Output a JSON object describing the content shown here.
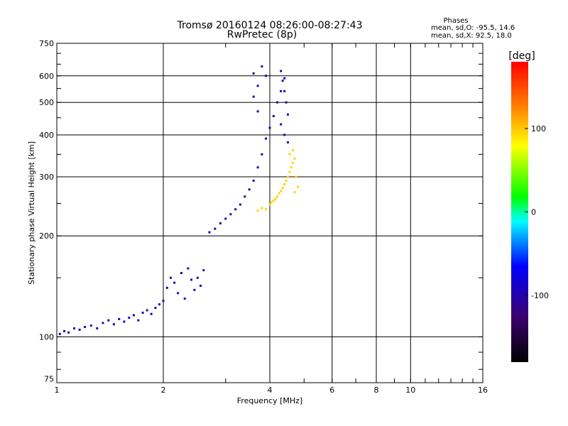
{
  "chart_data": {
    "type": "scatter",
    "title": "Tromsø 20160124 08:26:00-08:27:43",
    "subtitle": "RwPretec (8p)",
    "xlabel": "Frequency [MHz]",
    "ylabel": "Stationary phase Virtual Height [km]",
    "xscale": "log",
    "yscale": "log",
    "xlim": [
      1,
      16
    ],
    "ylim": [
      73,
      750
    ],
    "grid": true,
    "x_ticks": [
      1,
      2,
      4,
      6,
      8,
      10,
      16
    ],
    "x_tick_labels": [
      "1",
      "2",
      "4",
      "6",
      "8",
      "10",
      "16"
    ],
    "y_ticks": [
      75,
      100,
      200,
      300,
      400,
      500,
      600,
      750
    ],
    "y_tick_labels": [
      "75",
      "100",
      "200",
      "300",
      "400",
      "500",
      "600",
      "750"
    ],
    "phase_stats": {
      "title": "Phases",
      "o_line": "mean, sd,O: -95.5, 14.6",
      "x_line": "mean, sd,X:  92.5, 18.0"
    },
    "colorbar": {
      "label": "[deg]",
      "range": [
        -180,
        180
      ],
      "ticks": [
        100,
        0,
        -100
      ],
      "tick_labels": [
        "100",
        "0",
        "-100"
      ]
    },
    "series": [
      {
        "mode": "O",
        "phase_mean": -95.5,
        "phase_sd": 14.6,
        "color_phase": -100,
        "x": [
          1.02,
          1.05,
          1.08,
          1.12,
          1.16,
          1.2,
          1.25,
          1.3,
          1.35,
          1.4,
          1.45,
          1.5,
          1.55,
          1.6,
          1.65,
          1.7,
          1.75,
          1.8,
          1.85,
          1.9,
          1.95,
          2.0,
          2.05,
          2.1,
          2.15,
          2.2,
          2.25,
          2.3,
          2.35,
          2.4,
          2.45,
          2.5,
          2.55,
          2.6,
          2.7,
          2.8,
          2.9,
          3.0,
          3.1,
          3.2,
          3.3,
          3.4,
          3.5,
          3.6,
          3.7,
          3.8,
          3.9,
          4.0,
          4.1,
          4.2,
          4.3,
          4.4,
          3.6,
          3.6,
          3.7,
          3.7,
          3.8,
          3.9,
          4.3,
          4.35,
          4.4,
          4.45,
          4.5,
          4.3,
          4.4,
          4.5
        ],
        "y": [
          102,
          104,
          103,
          106,
          105,
          107,
          108,
          106,
          110,
          112,
          109,
          113,
          111,
          114,
          116,
          112,
          118,
          120,
          117,
          122,
          125,
          128,
          140,
          150,
          145,
          135,
          155,
          130,
          160,
          148,
          138,
          150,
          142,
          158,
          205,
          210,
          218,
          225,
          232,
          240,
          248,
          262,
          275,
          292,
          320,
          350,
          390,
          420,
          455,
          500,
          540,
          590,
          610,
          520,
          560,
          470,
          640,
          600,
          620,
          580,
          540,
          500,
          460,
          430,
          400,
          380
        ]
      },
      {
        "mode": "X",
        "phase_mean": 92.5,
        "phase_sd": 18.0,
        "color_phase": 95,
        "x": [
          3.7,
          3.8,
          3.9,
          4.0,
          4.05,
          4.1,
          4.15,
          4.2,
          4.25,
          4.3,
          4.35,
          4.4,
          4.45,
          4.5,
          4.55,
          4.6,
          4.65,
          4.7,
          4.75,
          4.8,
          4.55,
          4.65,
          4.7
        ],
        "y": [
          238,
          242,
          240,
          248,
          252,
          255,
          258,
          262,
          268,
          272,
          278,
          285,
          292,
          300,
          310,
          320,
          330,
          340,
          300,
          280,
          350,
          360,
          270
        ]
      }
    ]
  }
}
